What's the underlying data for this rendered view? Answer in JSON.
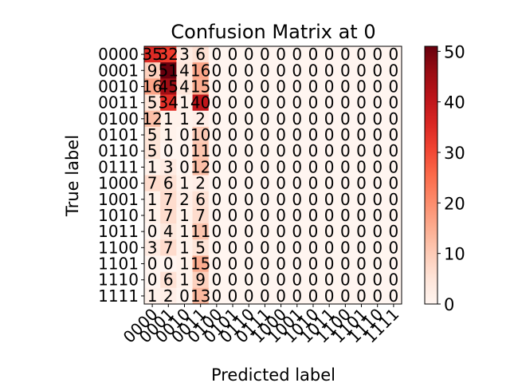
{
  "chart_data": {
    "type": "heatmap",
    "title": "Confusion Matrix at 0",
    "xlabel": "Predicted label",
    "ylabel": "True label",
    "labels": [
      "0000",
      "0001",
      "0010",
      "0011",
      "0100",
      "0101",
      "0110",
      "0111",
      "1000",
      "1001",
      "1010",
      "1011",
      "1100",
      "1101",
      "1110",
      "1111"
    ],
    "matrix": [
      [
        35,
        32,
        3,
        6,
        0,
        0,
        0,
        0,
        0,
        0,
        0,
        0,
        0,
        0,
        0,
        0
      ],
      [
        9,
        51,
        4,
        16,
        0,
        0,
        0,
        0,
        0,
        0,
        0,
        0,
        0,
        0,
        0,
        0
      ],
      [
        16,
        45,
        4,
        15,
        0,
        0,
        0,
        0,
        0,
        0,
        0,
        0,
        0,
        0,
        0,
        0
      ],
      [
        5,
        34,
        1,
        40,
        0,
        0,
        0,
        0,
        0,
        0,
        0,
        0,
        0,
        0,
        0,
        0
      ],
      [
        12,
        1,
        1,
        2,
        0,
        0,
        0,
        0,
        0,
        0,
        0,
        0,
        0,
        0,
        0,
        0
      ],
      [
        5,
        1,
        0,
        10,
        0,
        0,
        0,
        0,
        0,
        0,
        0,
        0,
        0,
        0,
        0,
        0
      ],
      [
        5,
        0,
        0,
        11,
        0,
        0,
        0,
        0,
        0,
        0,
        0,
        0,
        0,
        0,
        0,
        0
      ],
      [
        1,
        3,
        0,
        12,
        0,
        0,
        0,
        0,
        0,
        0,
        0,
        0,
        0,
        0,
        0,
        0
      ],
      [
        7,
        6,
        1,
        2,
        0,
        0,
        0,
        0,
        0,
        0,
        0,
        0,
        0,
        0,
        0,
        0
      ],
      [
        1,
        7,
        2,
        6,
        0,
        0,
        0,
        0,
        0,
        0,
        0,
        0,
        0,
        0,
        0,
        0
      ],
      [
        1,
        7,
        1,
        7,
        0,
        0,
        0,
        0,
        0,
        0,
        0,
        0,
        0,
        0,
        0,
        0
      ],
      [
        0,
        4,
        1,
        11,
        0,
        0,
        0,
        0,
        0,
        0,
        0,
        0,
        0,
        0,
        0,
        0
      ],
      [
        3,
        7,
        1,
        5,
        0,
        0,
        0,
        0,
        0,
        0,
        0,
        0,
        0,
        0,
        0,
        0
      ],
      [
        0,
        0,
        1,
        15,
        0,
        0,
        0,
        0,
        0,
        0,
        0,
        0,
        0,
        0,
        0,
        0
      ],
      [
        0,
        6,
        1,
        9,
        0,
        0,
        0,
        0,
        0,
        0,
        0,
        0,
        0,
        0,
        0,
        0
      ],
      [
        1,
        2,
        0,
        13,
        0,
        0,
        0,
        0,
        0,
        0,
        0,
        0,
        0,
        0,
        0,
        0
      ]
    ],
    "colorbar": {
      "min": 0,
      "max": 51,
      "ticks": [
        0,
        10,
        20,
        30,
        40,
        50
      ],
      "colormap": "Reds"
    },
    "grid": false
  }
}
